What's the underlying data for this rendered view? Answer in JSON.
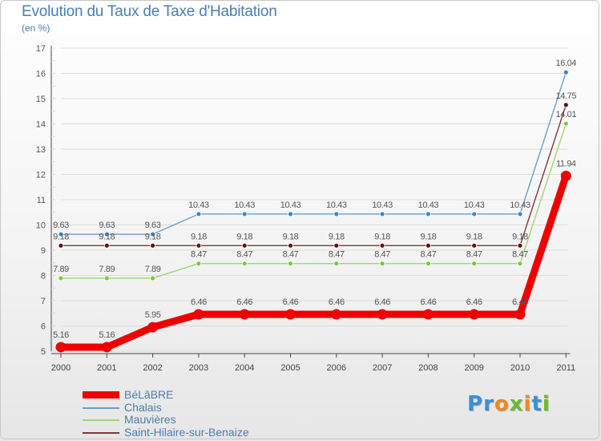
{
  "title": "Evolution du Taux de Taxe d'Habitation",
  "unit_label": "(en %)",
  "brand": {
    "letters": [
      "P",
      "r",
      "o",
      "x",
      "i",
      "t",
      "i"
    ],
    "colors": [
      "#3d8fd6",
      "#3d8fd6",
      "#f08a1c",
      "#6cba2c",
      "#f08a1c",
      "#3d8fd6",
      "#6cba2c"
    ]
  },
  "chart_data": {
    "type": "line",
    "title": "Evolution du Taux de Taxe d'Habitation",
    "ylabel": "(en %)",
    "xlabel": "",
    "ylim": [
      5,
      17
    ],
    "yticks": [
      "5",
      "6",
      "7",
      "8",
      "9",
      "10",
      "11",
      "12",
      "13",
      "14",
      "15",
      "16",
      "17"
    ],
    "x": [
      "2000",
      "2001",
      "2002",
      "2003",
      "2004",
      "2005",
      "2006",
      "2007",
      "2008",
      "2009",
      "2010",
      "2011"
    ],
    "series": [
      {
        "name": "Chalais",
        "color": "#6a9fcc",
        "dot_color": "#3d86c6",
        "values": [
          9.63,
          9.63,
          9.63,
          10.43,
          10.43,
          10.43,
          10.43,
          10.43,
          10.43,
          10.43,
          10.43,
          16.04
        ],
        "labels": [
          "9.63",
          "9.63",
          "9.63",
          "10.43",
          "10.43",
          "10.43",
          "10.43",
          "10.43",
          "10.43",
          "10.43",
          "10.43",
          "16.04"
        ]
      },
      {
        "name": "Saint-Hilaire-sur-Benaize",
        "color": "#7d3b3b",
        "dot_color": "#5c1414",
        "values": [
          9.18,
          9.18,
          9.18,
          9.18,
          9.18,
          9.18,
          9.18,
          9.18,
          9.18,
          9.18,
          9.18,
          14.75
        ],
        "labels": [
          "9.18",
          "9.18",
          "9.18",
          "9.18",
          "9.18",
          "9.18",
          "9.18",
          "9.18",
          "9.18",
          "9.18",
          "9.18",
          "14.75"
        ]
      },
      {
        "name": "Mauvières",
        "color": "#9ed672",
        "dot_color": "#77c940",
        "values": [
          7.89,
          7.89,
          7.89,
          8.47,
          8.47,
          8.47,
          8.47,
          8.47,
          8.47,
          8.47,
          8.47,
          14.01
        ],
        "labels": [
          "7.89",
          "7.89",
          "7.89",
          "8.47",
          "8.47",
          "8.47",
          "8.47",
          "8.47",
          "8.47",
          "8.47",
          "8.47",
          "14.01"
        ]
      },
      {
        "name": "BéLâBRE",
        "color": "#ee0000",
        "dot_color": "#ee0000",
        "values": [
          5.16,
          5.16,
          5.95,
          6.46,
          6.46,
          6.46,
          6.46,
          6.46,
          6.46,
          6.46,
          6.46,
          11.94
        ],
        "labels": [
          "5.16",
          "5.16",
          "5.95",
          "6.46",
          "6.46",
          "6.46",
          "6.46",
          "6.46",
          "6.46",
          "6.46",
          "6.46",
          "11.94"
        ]
      }
    ],
    "legend": [
      "BéLâBRE",
      "Chalais",
      "Mauvières",
      "Saint-Hilaire-sur-Benaize"
    ]
  }
}
